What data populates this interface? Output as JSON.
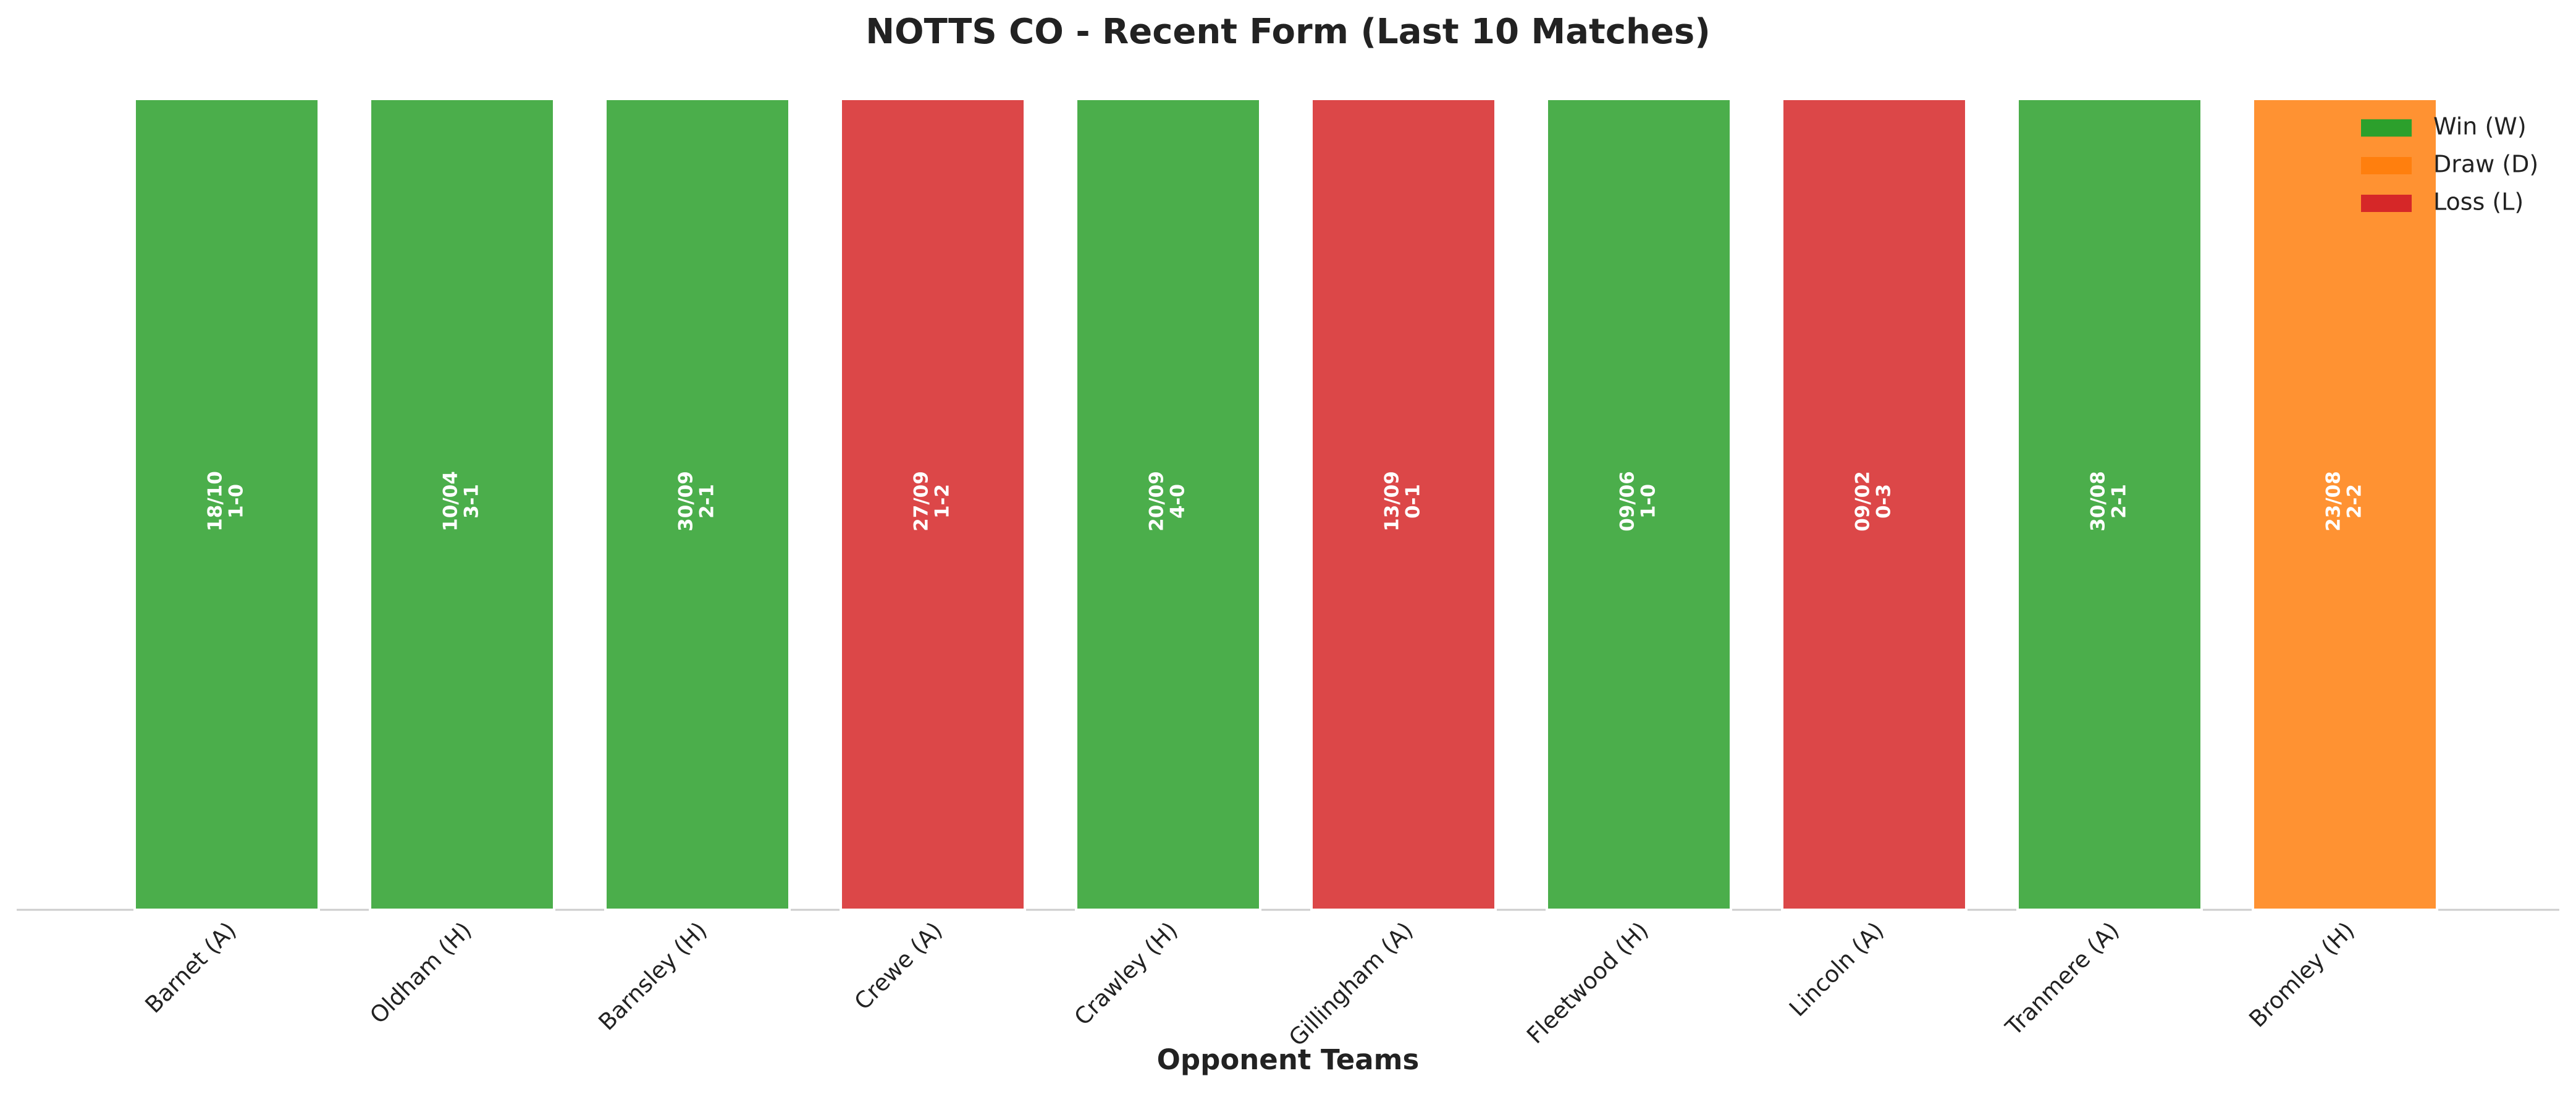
{
  "chart_data": {
    "type": "bar",
    "title": "NOTTS CO - Recent Form (Last 10 Matches)",
    "x_label": "Opponent Teams",
    "categories": [
      "Barnet (A)",
      "Oldham (H)",
      "Barnsley (H)",
      "Crewe (A)",
      "Crawley (H)",
      "Gillingham (A)",
      "Fleetwood (H)",
      "Lincoln (A)",
      "Tranmere (A)",
      "Bromley (H)"
    ],
    "dates": [
      "18/10",
      "10/04",
      "30/09",
      "27/09",
      "20/09",
      "13/09",
      "09/06",
      "09/02",
      "30/08",
      "23/08"
    ],
    "scores": [
      "1-0",
      "3-1",
      "2-1",
      "1-2",
      "4-0",
      "0-1",
      "1-0",
      "0-3",
      "2-1",
      "2-2"
    ],
    "series": [
      {
        "name": "Win (W)",
        "color": "#2ca02c",
        "values": [
          1,
          1,
          1,
          null,
          1,
          null,
          1,
          null,
          1,
          null
        ]
      },
      {
        "name": "Draw (D)",
        "color": "#ff7f0e",
        "values": [
          null,
          null,
          null,
          null,
          null,
          null,
          null,
          null,
          null,
          1
        ]
      },
      {
        "name": "Loss (L)",
        "color": "#d62728",
        "values": [
          null,
          null,
          null,
          1,
          null,
          1,
          null,
          1,
          null,
          null
        ]
      }
    ],
    "ylim": [
      0,
      1
    ],
    "legend": "upper right"
  }
}
